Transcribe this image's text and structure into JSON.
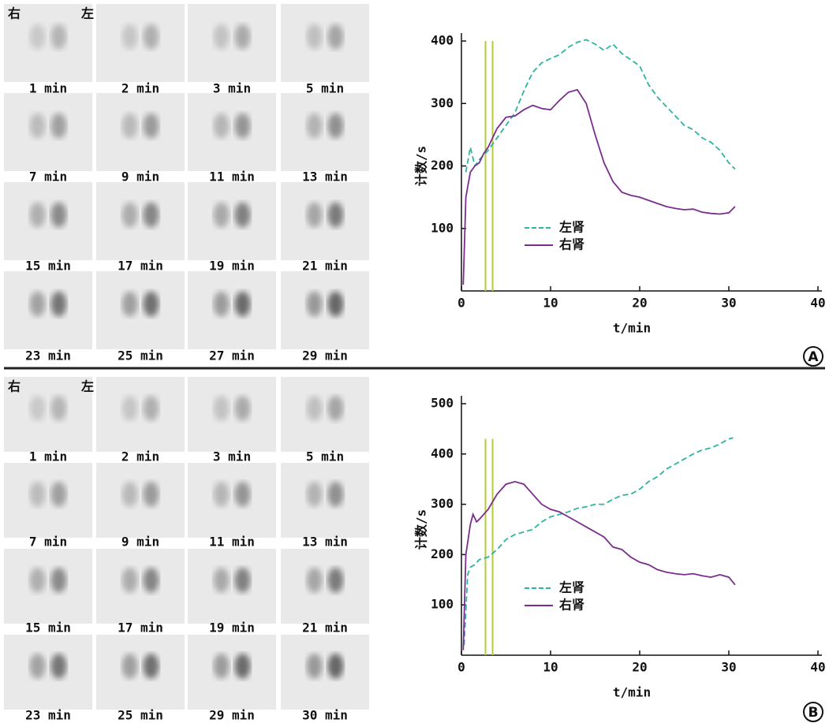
{
  "panels": [
    {
      "label": "A",
      "orientation": [
        "右",
        "左"
      ],
      "frames": [
        "1 min",
        "2 min",
        "3 min",
        "5 min",
        "7 min",
        "9 min",
        "11 min",
        "13 min",
        "15 min",
        "17 min",
        "19 min",
        "21 min",
        "23 min",
        "25 min",
        "27 min",
        "29 min"
      ]
    },
    {
      "label": "B",
      "orientation": [
        "右",
        "左"
      ],
      "frames": [
        "1 min",
        "2 min",
        "3 min",
        "5 min",
        "7 min",
        "9 min",
        "11 min",
        "13 min",
        "15 min",
        "17 min",
        "19 min",
        "21 min",
        "23 min",
        "25 min",
        "29 min",
        "30 min"
      ]
    }
  ],
  "chart_data": [
    {
      "type": "line",
      "xlabel": "t/min",
      "ylabel": "计数/s",
      "xlim": [
        0,
        40
      ],
      "xticks": [
        0,
        10,
        20,
        30,
        40
      ],
      "ylim": [
        0,
        400
      ],
      "yticks": [
        100,
        200,
        300,
        400
      ],
      "vlines": {
        "x": [
          2.7,
          3.5
        ],
        "top": 400,
        "color": "#b5cc3a"
      },
      "legend_position": "center-left",
      "series": [
        {
          "name": "左肾",
          "color": "#2bb5a0",
          "dashed": true,
          "x": [
            0.5,
            1,
            1.5,
            2,
            3,
            4,
            5,
            6,
            7,
            8,
            9,
            10,
            11,
            12,
            13,
            14,
            15,
            16,
            17,
            18,
            19,
            20,
            21,
            22,
            23,
            24,
            25,
            26,
            27,
            28,
            29,
            30,
            30.7
          ],
          "values": [
            190,
            230,
            200,
            210,
            225,
            245,
            265,
            285,
            320,
            350,
            365,
            372,
            378,
            390,
            398,
            402,
            395,
            385,
            395,
            380,
            370,
            360,
            330,
            310,
            295,
            280,
            265,
            258,
            245,
            238,
            225,
            205,
            195
          ]
        },
        {
          "name": "右肾",
          "color": "#7b2d8e",
          "dashed": false,
          "x": [
            0.2,
            0.5,
            1,
            1.5,
            2,
            2.5,
            3,
            4,
            5,
            6,
            7,
            8,
            9,
            10,
            11,
            12,
            13,
            14,
            15,
            16,
            17,
            18,
            19,
            20,
            21,
            22,
            23,
            24,
            25,
            26,
            27,
            28,
            29,
            30,
            30.7
          ],
          "values": [
            10,
            150,
            190,
            200,
            205,
            220,
            230,
            260,
            278,
            280,
            290,
            297,
            292,
            290,
            305,
            318,
            322,
            300,
            250,
            205,
            175,
            158,
            153,
            150,
            145,
            140,
            135,
            132,
            130,
            131,
            126,
            124,
            123,
            125,
            135
          ]
        }
      ]
    },
    {
      "type": "line",
      "xlabel": "t/min",
      "ylabel": "计数/s",
      "xlim": [
        0,
        40
      ],
      "xticks": [
        0,
        10,
        20,
        30,
        40
      ],
      "ylim": [
        0,
        500
      ],
      "yticks": [
        100,
        200,
        300,
        400,
        500
      ],
      "vlines": {
        "x": [
          2.7,
          3.5
        ],
        "top": 430,
        "color": "#b5cc3a"
      },
      "legend_position": "center-left",
      "series": [
        {
          "name": "左肾",
          "color": "#2bb5a0",
          "dashed": true,
          "x": [
            0.3,
            0.7,
            1,
            1.5,
            2,
            3,
            4,
            5,
            6,
            7,
            8,
            9,
            10,
            11,
            12,
            13,
            14,
            15,
            16,
            17,
            18,
            19,
            20,
            21,
            22,
            23,
            24,
            25,
            26,
            27,
            28,
            29,
            30,
            30.5
          ],
          "values": [
            20,
            160,
            175,
            180,
            190,
            195,
            210,
            230,
            240,
            245,
            250,
            265,
            275,
            280,
            285,
            292,
            295,
            300,
            300,
            310,
            318,
            320,
            330,
            345,
            355,
            370,
            380,
            390,
            400,
            408,
            412,
            420,
            430,
            432
          ]
        },
        {
          "name": "右肾",
          "color": "#7b2d8e",
          "dashed": false,
          "x": [
            0.2,
            0.5,
            1,
            1.3,
            1.7,
            2,
            3,
            4,
            5,
            6,
            7,
            8,
            9,
            10,
            11,
            12,
            13,
            14,
            15,
            16,
            17,
            18,
            19,
            20,
            21,
            22,
            23,
            24,
            25,
            26,
            27,
            28,
            29,
            30,
            30.7
          ],
          "values": [
            10,
            200,
            260,
            280,
            265,
            270,
            290,
            320,
            340,
            345,
            340,
            320,
            300,
            290,
            285,
            275,
            265,
            255,
            245,
            235,
            215,
            210,
            195,
            185,
            180,
            170,
            165,
            162,
            160,
            162,
            158,
            155,
            160,
            155,
            140
          ]
        }
      ]
    }
  ]
}
